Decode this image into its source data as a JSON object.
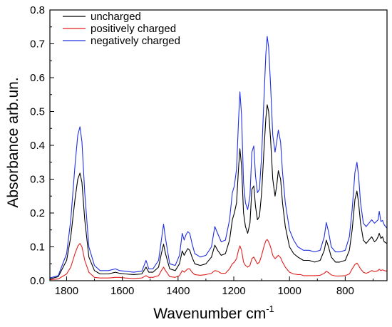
{
  "chart_data": {
    "type": "line",
    "xlabel": "Wavenumber  cm",
    "xlabel_superscript": "-1",
    "ylabel": "Absorbance  arb.un.",
    "xlim": [
      1860,
      650
    ],
    "ylim": [
      0.0,
      0.8
    ],
    "x_reversed": true,
    "grid": false,
    "legend_position": "top-left",
    "x_ticks": [
      1800,
      1600,
      1400,
      1200,
      1000,
      800
    ],
    "x_tick_labels": [
      "1800",
      "1600",
      "1400",
      "1200",
      "1000",
      "800"
    ],
    "y_ticks": [
      0.0,
      0.1,
      0.2,
      0.3,
      0.4,
      0.5,
      0.6,
      0.7,
      0.8
    ],
    "y_tick_labels": [
      "0.0",
      "0.1",
      "0.2",
      "0.3",
      "0.4",
      "0.5",
      "0.6",
      "0.7",
      "0.8"
    ],
    "x": [
      1860,
      1830,
      1800,
      1785,
      1770,
      1760,
      1752,
      1745,
      1735,
      1720,
      1700,
      1680,
      1650,
      1625,
      1610,
      1590,
      1560,
      1530,
      1515,
      1505,
      1490,
      1470,
      1460,
      1452,
      1445,
      1430,
      1410,
      1395,
      1385,
      1378,
      1372,
      1365,
      1358,
      1350,
      1340,
      1320,
      1300,
      1280,
      1268,
      1258,
      1245,
      1230,
      1215,
      1205,
      1198,
      1190,
      1183,
      1178,
      1172,
      1165,
      1158,
      1150,
      1142,
      1135,
      1128,
      1122,
      1115,
      1108,
      1100,
      1092,
      1085,
      1080,
      1075,
      1068,
      1060,
      1052,
      1046,
      1040,
      1032,
      1025,
      1015,
      1000,
      985,
      970,
      960,
      950,
      930,
      910,
      890,
      875,
      868,
      860,
      850,
      835,
      820,
      800,
      785,
      775,
      765,
      758,
      752,
      745,
      735,
      725,
      715,
      705,
      695,
      688,
      682,
      678,
      672,
      666,
      660,
      650
    ],
    "series": [
      {
        "name": "uncharged",
        "color": "#000000",
        "values": [
          0.005,
          0.012,
          0.06,
          0.13,
          0.24,
          0.3,
          0.318,
          0.29,
          0.18,
          0.07,
          0.03,
          0.02,
          0.02,
          0.025,
          0.022,
          0.02,
          0.018,
          0.02,
          0.04,
          0.025,
          0.025,
          0.04,
          0.08,
          0.108,
          0.08,
          0.035,
          0.03,
          0.05,
          0.088,
          0.075,
          0.085,
          0.095,
          0.09,
          0.07,
          0.05,
          0.045,
          0.05,
          0.07,
          0.105,
          0.09,
          0.075,
          0.08,
          0.12,
          0.18,
          0.2,
          0.23,
          0.33,
          0.39,
          0.34,
          0.2,
          0.16,
          0.14,
          0.17,
          0.27,
          0.28,
          0.22,
          0.18,
          0.19,
          0.26,
          0.38,
          0.48,
          0.52,
          0.5,
          0.42,
          0.3,
          0.25,
          0.28,
          0.325,
          0.3,
          0.23,
          0.16,
          0.1,
          0.08,
          0.07,
          0.065,
          0.06,
          0.06,
          0.055,
          0.06,
          0.09,
          0.12,
          0.1,
          0.07,
          0.055,
          0.055,
          0.06,
          0.09,
          0.15,
          0.24,
          0.265,
          0.23,
          0.17,
          0.12,
          0.11,
          0.12,
          0.13,
          0.115,
          0.12,
          0.13,
          0.14,
          0.125,
          0.13,
          0.115,
          0.11
        ]
      },
      {
        "name": "positively charged",
        "color": "#e02020",
        "values": [
          0.003,
          0.005,
          0.02,
          0.04,
          0.08,
          0.102,
          0.11,
          0.1,
          0.06,
          0.025,
          0.01,
          0.008,
          0.008,
          0.01,
          0.01,
          0.008,
          0.006,
          0.008,
          0.015,
          0.01,
          0.01,
          0.015,
          0.03,
          0.04,
          0.03,
          0.012,
          0.01,
          0.015,
          0.03,
          0.025,
          0.03,
          0.035,
          0.035,
          0.025,
          0.018,
          0.016,
          0.018,
          0.022,
          0.03,
          0.028,
          0.022,
          0.022,
          0.035,
          0.05,
          0.055,
          0.065,
          0.09,
          0.103,
          0.09,
          0.055,
          0.045,
          0.04,
          0.045,
          0.065,
          0.07,
          0.06,
          0.05,
          0.055,
          0.075,
          0.1,
          0.118,
          0.122,
          0.115,
          0.1,
          0.075,
          0.065,
          0.07,
          0.075,
          0.068,
          0.055,
          0.04,
          0.025,
          0.02,
          0.018,
          0.018,
          0.015,
          0.015,
          0.015,
          0.016,
          0.022,
          0.028,
          0.024,
          0.017,
          0.014,
          0.014,
          0.015,
          0.02,
          0.035,
          0.048,
          0.052,
          0.045,
          0.035,
          0.025,
          0.022,
          0.025,
          0.03,
          0.027,
          0.028,
          0.03,
          0.034,
          0.03,
          0.032,
          0.03,
          0.028
        ]
      },
      {
        "name": "negatively charged",
        "color": "#2030e0",
        "values": [
          0.008,
          0.015,
          0.08,
          0.18,
          0.34,
          0.43,
          0.455,
          0.41,
          0.26,
          0.1,
          0.045,
          0.03,
          0.03,
          0.035,
          0.03,
          0.028,
          0.025,
          0.028,
          0.06,
          0.035,
          0.035,
          0.06,
          0.12,
          0.167,
          0.125,
          0.05,
          0.045,
          0.075,
          0.14,
          0.12,
          0.135,
          0.145,
          0.14,
          0.11,
          0.08,
          0.07,
          0.075,
          0.1,
          0.16,
          0.14,
          0.115,
          0.12,
          0.18,
          0.26,
          0.28,
          0.33,
          0.47,
          0.558,
          0.49,
          0.29,
          0.23,
          0.21,
          0.25,
          0.38,
          0.398,
          0.31,
          0.26,
          0.27,
          0.37,
          0.53,
          0.67,
          0.722,
          0.69,
          0.58,
          0.43,
          0.38,
          0.41,
          0.445,
          0.41,
          0.32,
          0.23,
          0.15,
          0.12,
          0.1,
          0.095,
          0.09,
          0.09,
          0.085,
          0.09,
          0.13,
          0.172,
          0.145,
          0.1,
          0.085,
          0.085,
          0.09,
          0.13,
          0.21,
          0.32,
          0.35,
          0.31,
          0.23,
          0.17,
          0.16,
          0.17,
          0.18,
          0.17,
          0.175,
          0.18,
          0.205,
          0.175,
          0.178,
          0.165,
          0.155
        ]
      }
    ]
  }
}
